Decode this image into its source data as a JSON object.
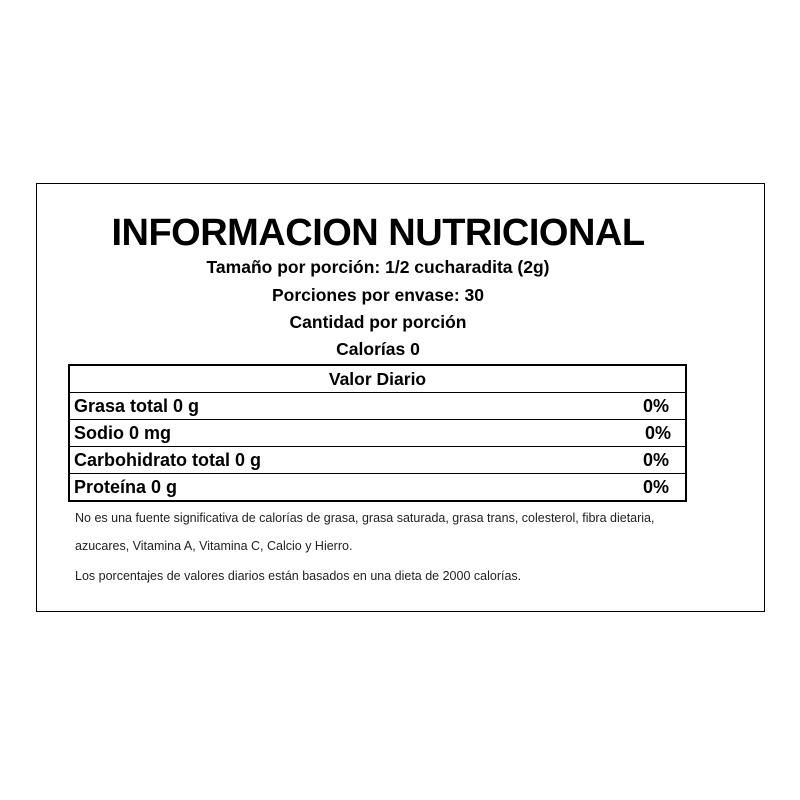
{
  "title": "INFORMACION NUTRICIONAL",
  "serving_size": "Tamaño por porción: 1/2 cucharadita (2g)",
  "servings_per_container": "Porciones por envase: 30",
  "amount_per_serving": "Cantidad por porción",
  "calories": "Calorías 0",
  "table": {
    "header": "Valor Diario",
    "rows": [
      {
        "name": "Grasa total 0 g",
        "percent": "0%"
      },
      {
        "name": "Sodio 0 mg",
        "percent": "0%"
      },
      {
        "name": "Carbohidrato total 0 g",
        "percent": "0%"
      },
      {
        "name": "Proteína 0 g",
        "percent": "0%"
      }
    ]
  },
  "notes": [
    "No es una fuente significativa de calorías de grasa, grasa saturada, grasa trans, colesterol, fibra dietaria,",
    "azucares, Vitamina A, Vitamina C, Calcio y Hierro.",
    "Los porcentajes de valores diarios están basados en una dieta de 2000 calorías."
  ]
}
